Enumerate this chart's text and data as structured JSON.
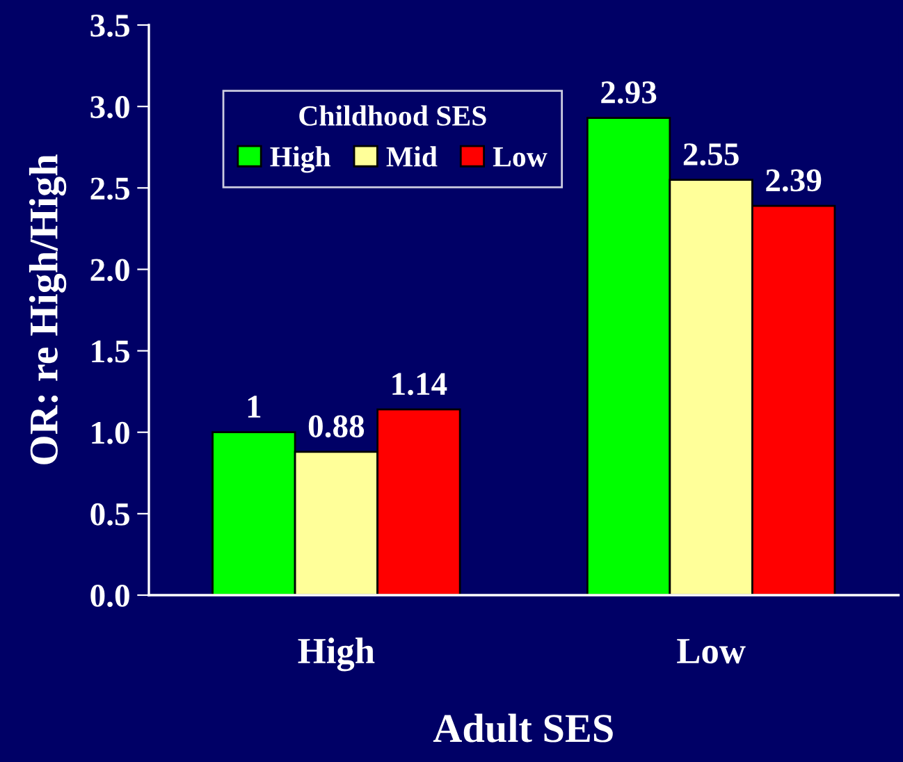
{
  "chart_data": {
    "type": "bar",
    "xlabel": "Adult SES",
    "ylabel": "OR: re High/High",
    "legend_title": "Childhood SES",
    "categories": [
      "High",
      "Low"
    ],
    "series": [
      {
        "name": "High",
        "color": "#00ff00",
        "values": [
          1,
          2.93
        ]
      },
      {
        "name": "Mid",
        "color": "#ffff99",
        "values": [
          0.88,
          2.55
        ]
      },
      {
        "name": "Low",
        "color": "#ff0000",
        "values": [
          1.14,
          2.39
        ]
      }
    ],
    "ylim": [
      0,
      3.5
    ],
    "yticks": [
      {
        "value": 0,
        "label": "0.0"
      },
      {
        "value": 0.5,
        "label": "0.5"
      },
      {
        "value": 1,
        "label": "1.0"
      },
      {
        "value": 1.5,
        "label": "1.5"
      },
      {
        "value": 2,
        "label": "2.0"
      },
      {
        "value": 2.5,
        "label": "2.5"
      },
      {
        "value": 3,
        "label": "3.0"
      },
      {
        "value": 3.5,
        "label": "3.5"
      }
    ],
    "data_labels": true,
    "grid": false,
    "legend": "top left"
  }
}
